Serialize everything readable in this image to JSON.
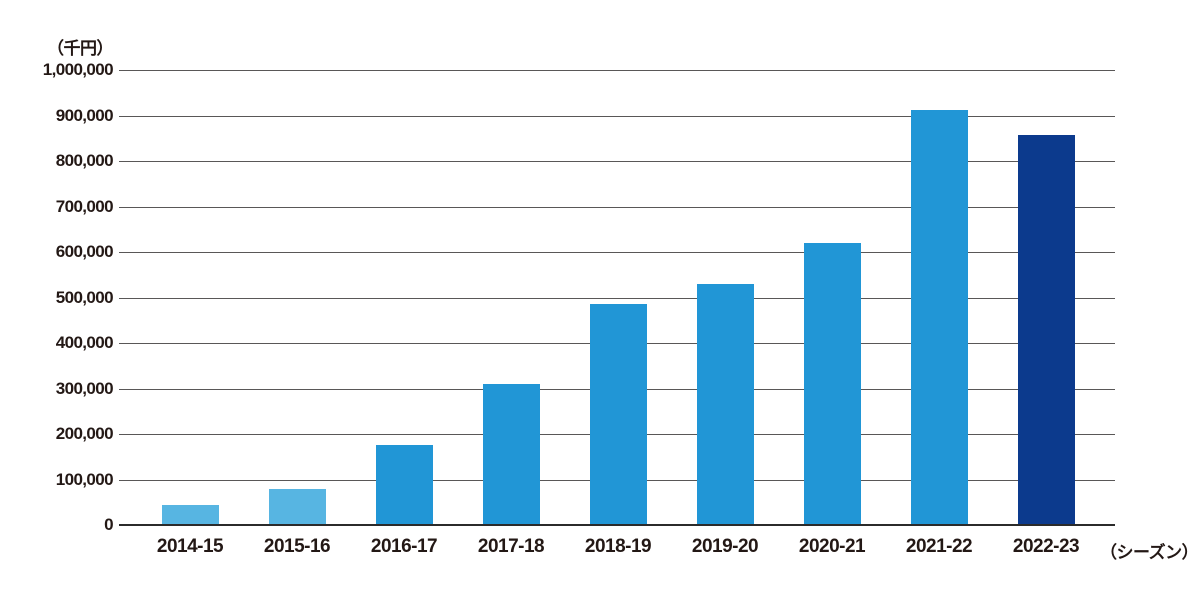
{
  "chart_data": {
    "type": "bar",
    "title": "",
    "unit_label": "（千円）",
    "x_unit_label": "（シーズン）",
    "categories": [
      "2014-15",
      "2015-16",
      "2016-17",
      "2017-18",
      "2018-19",
      "2019-20",
      "2020-21",
      "2021-22",
      "2022-23"
    ],
    "values": [
      43000,
      80000,
      175000,
      310000,
      486000,
      530000,
      620000,
      913000,
      858000
    ],
    "bar_colors": [
      "#57B5E2",
      "#57B5E2",
      "#2196D6",
      "#2196D6",
      "#2196D6",
      "#2196D6",
      "#2196D6",
      "#2196D6",
      "#0C3A8D"
    ],
    "ylim": [
      0,
      1000000
    ],
    "y_tick_values": [
      0,
      100000,
      200000,
      300000,
      400000,
      500000,
      600000,
      700000,
      800000,
      900000,
      1000000
    ],
    "y_tick_labels": [
      "0",
      "100,000",
      "200,000",
      "300,000",
      "400,000",
      "500,000",
      "600,000",
      "700,000",
      "800,000",
      "900,000",
      "1,000,000"
    ],
    "grid": "horizontal",
    "legend": "none",
    "colors": {
      "light_blue": "#57B5E2",
      "blue": "#2196D6",
      "navy": "#0C3A8D",
      "gridline": "#595757",
      "axis": "#2B2B2B",
      "text": "#231815"
    }
  }
}
